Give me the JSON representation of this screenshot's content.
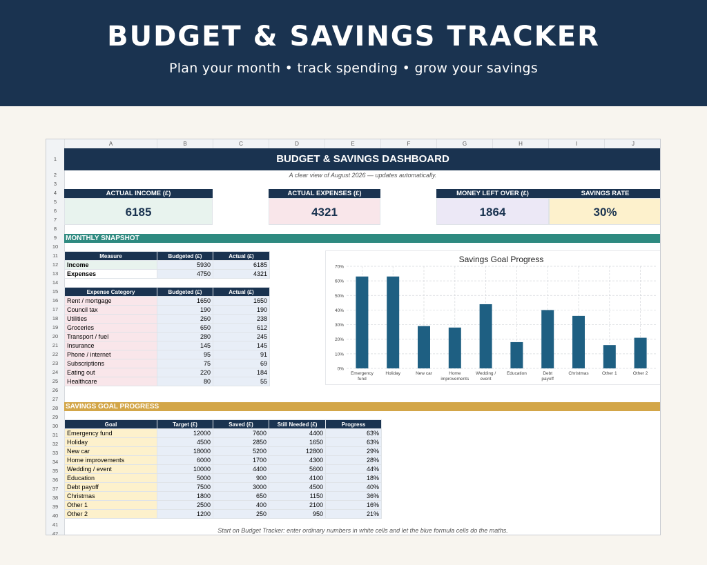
{
  "banner": {
    "title": "BUDGET & SAVINGS TRACKER",
    "subtitle": "Plan your month • track spending • grow your savings"
  },
  "sheet": {
    "columns": [
      "A",
      "B",
      "C",
      "D",
      "E",
      "F",
      "G",
      "H",
      "I",
      "J"
    ],
    "rows": [
      "1",
      "2",
      "3",
      "4",
      "5",
      "6",
      "7",
      "8",
      "9",
      "10",
      "11",
      "12",
      "13",
      "14",
      "15",
      "16",
      "17",
      "18",
      "19",
      "20",
      "21",
      "22",
      "23",
      "24",
      "25",
      "26",
      "27",
      "28",
      "29",
      "30",
      "31",
      "32",
      "33",
      "34",
      "35",
      "36",
      "37",
      "38",
      "39",
      "40",
      "41",
      "42"
    ],
    "dashboard_title": "BUDGET & SAVINGS DASHBOARD",
    "dashboard_subtitle": "A clear view of August 2026 — updates automatically.",
    "kpis": {
      "income_label": "ACTUAL INCOME (£)",
      "income_value": "6185",
      "expenses_label": "ACTUAL EXPENSES (£)",
      "expenses_value": "4321",
      "leftover_label": "MONEY LEFT OVER (£)",
      "leftover_value": "1864",
      "rate_label": "SAVINGS RATE",
      "rate_value": "30%"
    },
    "snapshot_header": "MONTHLY SNAPSHOT",
    "measure_table": {
      "headers": [
        "Measure",
        "Budgeted (£)",
        "Actual (£)"
      ],
      "rows": [
        [
          "Income",
          "5930",
          "6185"
        ],
        [
          "Expenses",
          "4750",
          "4321"
        ]
      ]
    },
    "expense_table": {
      "headers": [
        "Expense Category",
        "Budgeted (£)",
        "Actual (£)"
      ],
      "rows": [
        [
          "Rent / mortgage",
          "1650",
          "1650"
        ],
        [
          "Council tax",
          "190",
          "190"
        ],
        [
          "Utilities",
          "260",
          "238"
        ],
        [
          "Groceries",
          "650",
          "612"
        ],
        [
          "Transport / fuel",
          "280",
          "245"
        ],
        [
          "Insurance",
          "145",
          "145"
        ],
        [
          "Phone / internet",
          "95",
          "91"
        ],
        [
          "Subscriptions",
          "75",
          "69"
        ],
        [
          "Eating out",
          "220",
          "184"
        ],
        [
          "Healthcare",
          "80",
          "55"
        ]
      ]
    },
    "savings_header": "SAVINGS GOAL PROGRESS",
    "goal_table": {
      "headers": [
        "Goal",
        "Target (£)",
        "Saved (£)",
        "Still Needed (£)",
        "Progress"
      ],
      "rows": [
        [
          "Emergency fund",
          "12000",
          "7600",
          "4400",
          "63%"
        ],
        [
          "Holiday",
          "4500",
          "2850",
          "1650",
          "63%"
        ],
        [
          "New car",
          "18000",
          "5200",
          "12800",
          "29%"
        ],
        [
          "Home improvements",
          "6000",
          "1700",
          "4300",
          "28%"
        ],
        [
          "Wedding / event",
          "10000",
          "4400",
          "5600",
          "44%"
        ],
        [
          "Education",
          "5000",
          "900",
          "4100",
          "18%"
        ],
        [
          "Debt payoff",
          "7500",
          "3000",
          "4500",
          "40%"
        ],
        [
          "Christmas",
          "1800",
          "650",
          "1150",
          "36%"
        ],
        [
          "Other 1",
          "2500",
          "400",
          "2100",
          "16%"
        ],
        [
          "Other 2",
          "1200",
          "250",
          "950",
          "21%"
        ]
      ]
    },
    "footer_note": "Start on Budget Tracker: enter ordinary numbers in white cells and let the blue formula cells do the maths."
  },
  "colors": {
    "navy": "#1a3350",
    "teal": "#2e8a80",
    "gold": "#d3a648",
    "bar": "#1e5f82",
    "income_bg": "#e8f3ee",
    "expenses_bg": "#f9e6ea",
    "leftover_bg": "#ece8f6",
    "rate_bg": "#fdf1cc"
  },
  "chart_data": {
    "type": "bar",
    "title": "Savings Goal Progress",
    "categories": [
      "Emergency fund",
      "Holiday",
      "New car",
      "Home improvements",
      "Wedding / event",
      "Education",
      "Debt payoff",
      "Christmas",
      "Other 1",
      "Other 2"
    ],
    "values": [
      63,
      63,
      29,
      28,
      44,
      18,
      40,
      36,
      16,
      21
    ],
    "ylim": [
      0,
      70
    ],
    "yticks": [
      "0%",
      "10%",
      "20%",
      "30%",
      "40%",
      "50%",
      "60%",
      "70%"
    ],
    "grid": true,
    "legend": "none"
  }
}
